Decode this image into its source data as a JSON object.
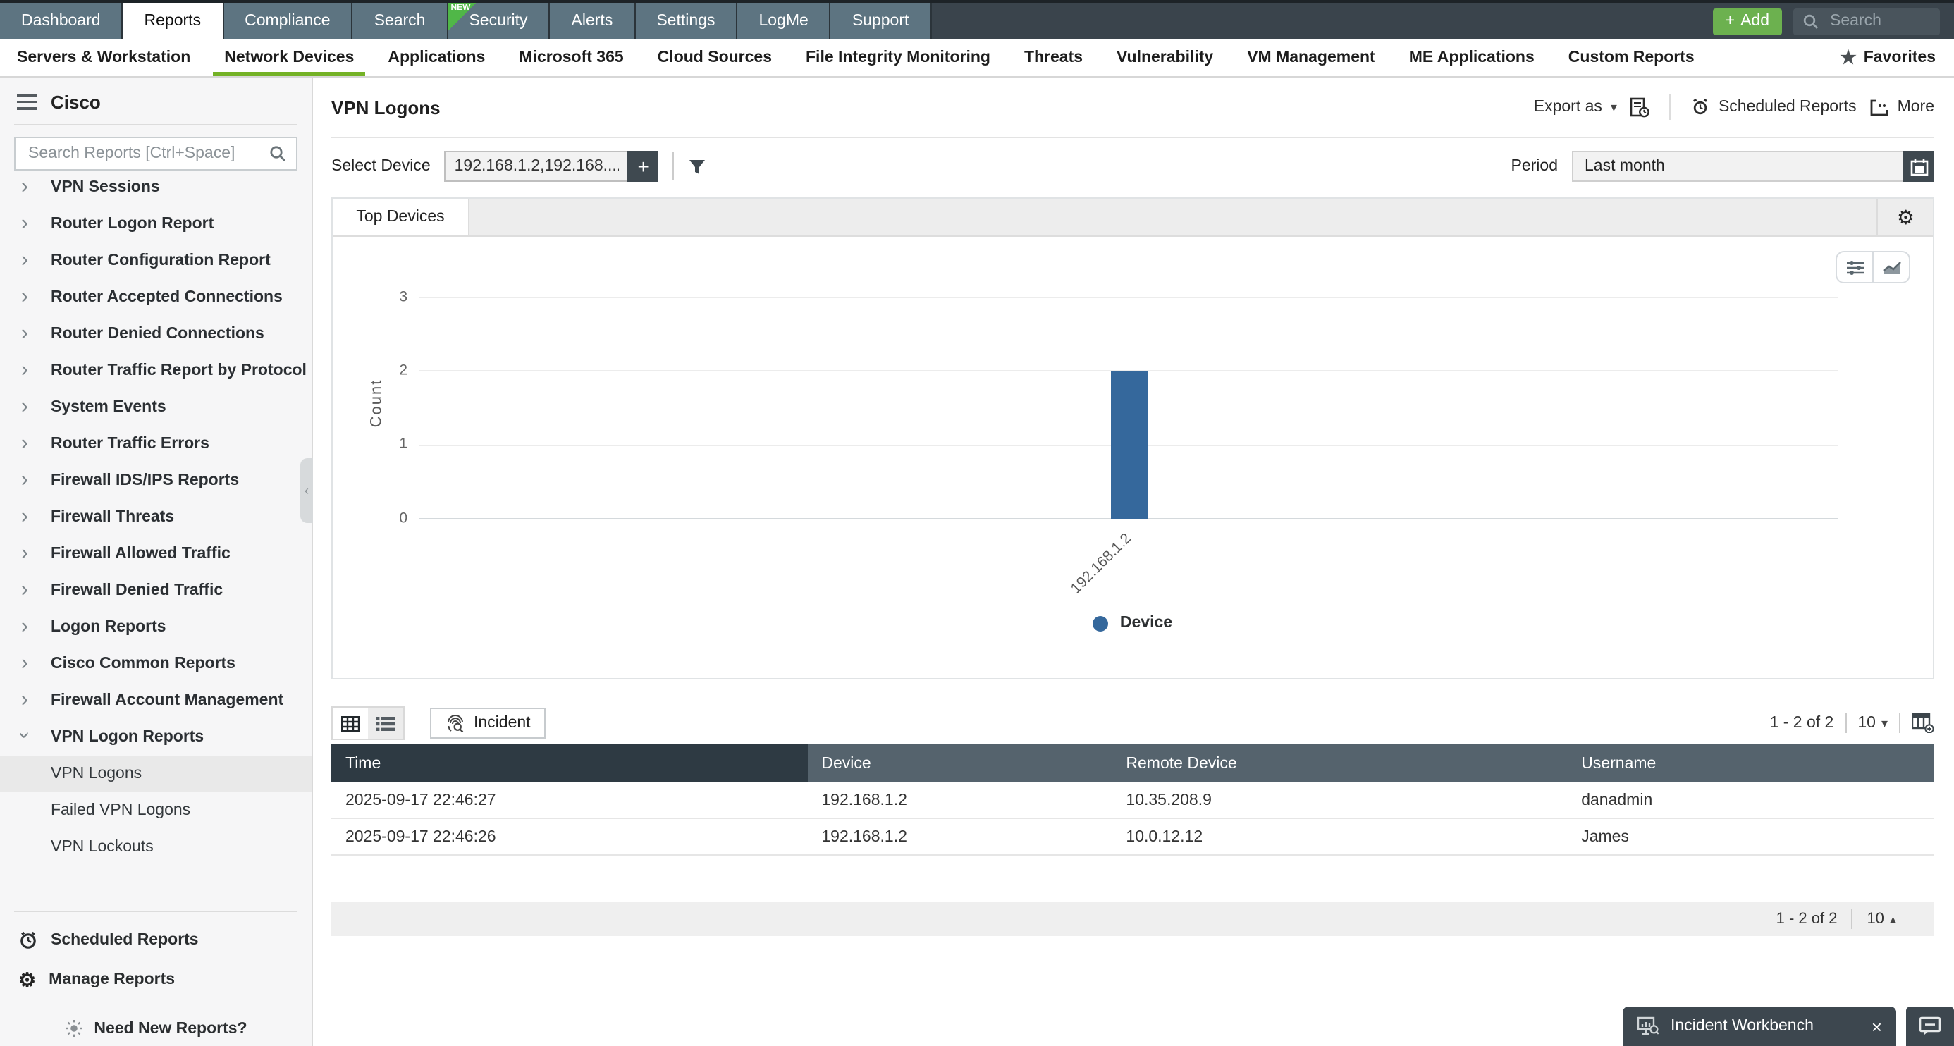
{
  "top_nav": {
    "tabs": [
      {
        "label": "Dashboard"
      },
      {
        "label": "Reports",
        "active": true
      },
      {
        "label": "Compliance"
      },
      {
        "label": "Search"
      },
      {
        "label": "Security",
        "badge": "NEW"
      },
      {
        "label": "Alerts"
      },
      {
        "label": "Settings"
      },
      {
        "label": "LogMe"
      },
      {
        "label": "Support"
      }
    ],
    "add_label": "Add",
    "search_placeholder": "Search"
  },
  "sub_nav": {
    "items": [
      {
        "label": "Servers & Workstation"
      },
      {
        "label": "Network Devices",
        "active": true
      },
      {
        "label": "Applications"
      },
      {
        "label": "Microsoft 365"
      },
      {
        "label": "Cloud Sources"
      },
      {
        "label": "File Integrity Monitoring"
      },
      {
        "label": "Threats"
      },
      {
        "label": "Vulnerability"
      },
      {
        "label": "VM Management"
      },
      {
        "label": "ME Applications"
      },
      {
        "label": "Custom Reports"
      }
    ],
    "favorites_label": "Favorites"
  },
  "sidebar": {
    "title": "Cisco",
    "search_placeholder": "Search Reports [Ctrl+Space]",
    "items": [
      {
        "label": "VPN Sessions",
        "chevron": "right",
        "cut": true
      },
      {
        "label": "Router Logon Report",
        "chevron": "right"
      },
      {
        "label": "Router Configuration Report",
        "chevron": "right"
      },
      {
        "label": "Router Accepted Connections",
        "chevron": "right"
      },
      {
        "label": "Router Denied Connections",
        "chevron": "right"
      },
      {
        "label": "Router Traffic Report by Protocol",
        "chevron": "right"
      },
      {
        "label": "System Events",
        "chevron": "right"
      },
      {
        "label": "Router Traffic Errors",
        "chevron": "right"
      },
      {
        "label": "Firewall IDS/IPS Reports",
        "chevron": "right"
      },
      {
        "label": "Firewall Threats",
        "chevron": "right"
      },
      {
        "label": "Firewall Allowed Traffic",
        "chevron": "right"
      },
      {
        "label": "Firewall Denied Traffic",
        "chevron": "right"
      },
      {
        "label": "Logon Reports",
        "chevron": "right"
      },
      {
        "label": "Cisco Common Reports",
        "chevron": "right"
      },
      {
        "label": "Firewall Account Management",
        "chevron": "right"
      },
      {
        "label": "VPN Logon Reports",
        "chevron": "down"
      },
      {
        "label": "VPN Logons",
        "level": 1,
        "selected": true
      },
      {
        "label": "Failed VPN Logons",
        "level": 1
      },
      {
        "label": "VPN Lockouts",
        "level": 1
      }
    ],
    "footer": [
      {
        "label": "Scheduled Reports"
      },
      {
        "label": "Manage Reports"
      }
    ],
    "need_new_reports": "Need New Reports?"
  },
  "report": {
    "title": "VPN Logons",
    "export_label": "Export as",
    "scheduled_label": "Scheduled Reports",
    "more_label": "More"
  },
  "filters": {
    "device_label": "Select Device",
    "device_value": "192.168.1.2,192.168....",
    "period_label": "Period",
    "period_value": "Last month"
  },
  "chart_panel": {
    "tab_label": "Top Devices"
  },
  "chart_data": {
    "type": "bar",
    "title": "Top Devices",
    "categories": [
      "192.168.1.2"
    ],
    "series": [
      {
        "name": "Device",
        "values": [
          2
        ]
      }
    ],
    "xlabel": "",
    "ylabel": "Count",
    "ylim": [
      0,
      3
    ],
    "y_ticks": [
      0,
      1,
      2,
      3
    ],
    "grid": true,
    "legend": [
      "Device"
    ],
    "legend_position": "bottom",
    "bar_color": "#35689c"
  },
  "table": {
    "toolbar": {
      "incident_label": "Incident",
      "range": "1 - 2 of 2",
      "page_size": "10"
    },
    "headers": [
      "Time",
      "Device",
      "Remote Device",
      "Username"
    ],
    "rows": [
      [
        "2025-09-17 22:46:27",
        "192.168.1.2",
        "10.35.208.9",
        "danadmin"
      ],
      [
        "2025-09-17 22:46:26",
        "192.168.1.2",
        "10.0.12.12",
        "James"
      ]
    ],
    "footer": {
      "range": "1 - 2 of 2",
      "page_size": "10"
    }
  },
  "workbench": {
    "label": "Incident Workbench"
  },
  "colors": {
    "accent_green": "#74b226",
    "add_green": "#6cb14f",
    "badge_green": "#50b748",
    "bar_blue": "#35689c",
    "table_header_dark": "#2e3a43",
    "table_header_slate": "#55636d",
    "topbar_dark": "#3a444c",
    "tab_slate": "#5d7481"
  },
  "icons": {
    "add_plus": "+",
    "caret_down": "▾",
    "caret_up": "▴",
    "star": "★",
    "close": "×",
    "gear": "⚙",
    "sidebar_chevron": "›",
    "collapse_handle": "‹"
  }
}
